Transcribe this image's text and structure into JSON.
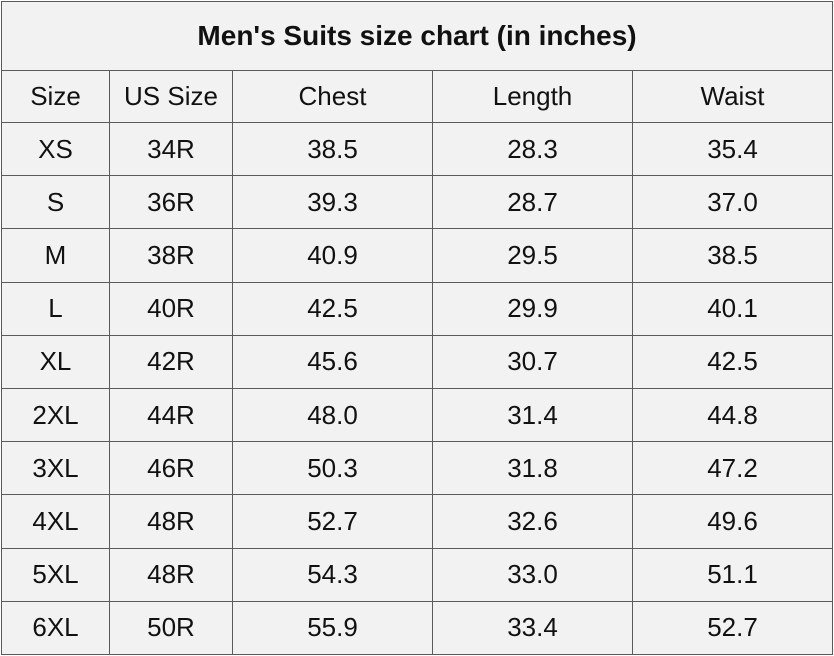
{
  "title": "Men's Suits size chart (in inches)",
  "headers": [
    "Size",
    "US Size",
    "Chest",
    "Length",
    "Waist"
  ],
  "rows": [
    [
      "XS",
      "34R",
      "38.5",
      "28.3",
      "35.4"
    ],
    [
      "S",
      "36R",
      "39.3",
      "28.7",
      "37.0"
    ],
    [
      "M",
      "38R",
      "40.9",
      "29.5",
      "38.5"
    ],
    [
      "L",
      "40R",
      "42.5",
      "29.9",
      "40.1"
    ],
    [
      "XL",
      "42R",
      "45.6",
      "30.7",
      "42.5"
    ],
    [
      "2XL",
      "44R",
      "48.0",
      "31.4",
      "44.8"
    ],
    [
      "3XL",
      "46R",
      "50.3",
      "31.8",
      "47.2"
    ],
    [
      "4XL",
      "48R",
      "52.7",
      "32.6",
      "49.6"
    ],
    [
      "5XL",
      "48R",
      "54.3",
      "33.0",
      "51.1"
    ],
    [
      "6XL",
      "50R",
      "55.9",
      "33.4",
      "52.7"
    ]
  ],
  "colors": {
    "background": "#f2f2f2",
    "border": "#5a5a5a",
    "text": "#111111"
  }
}
